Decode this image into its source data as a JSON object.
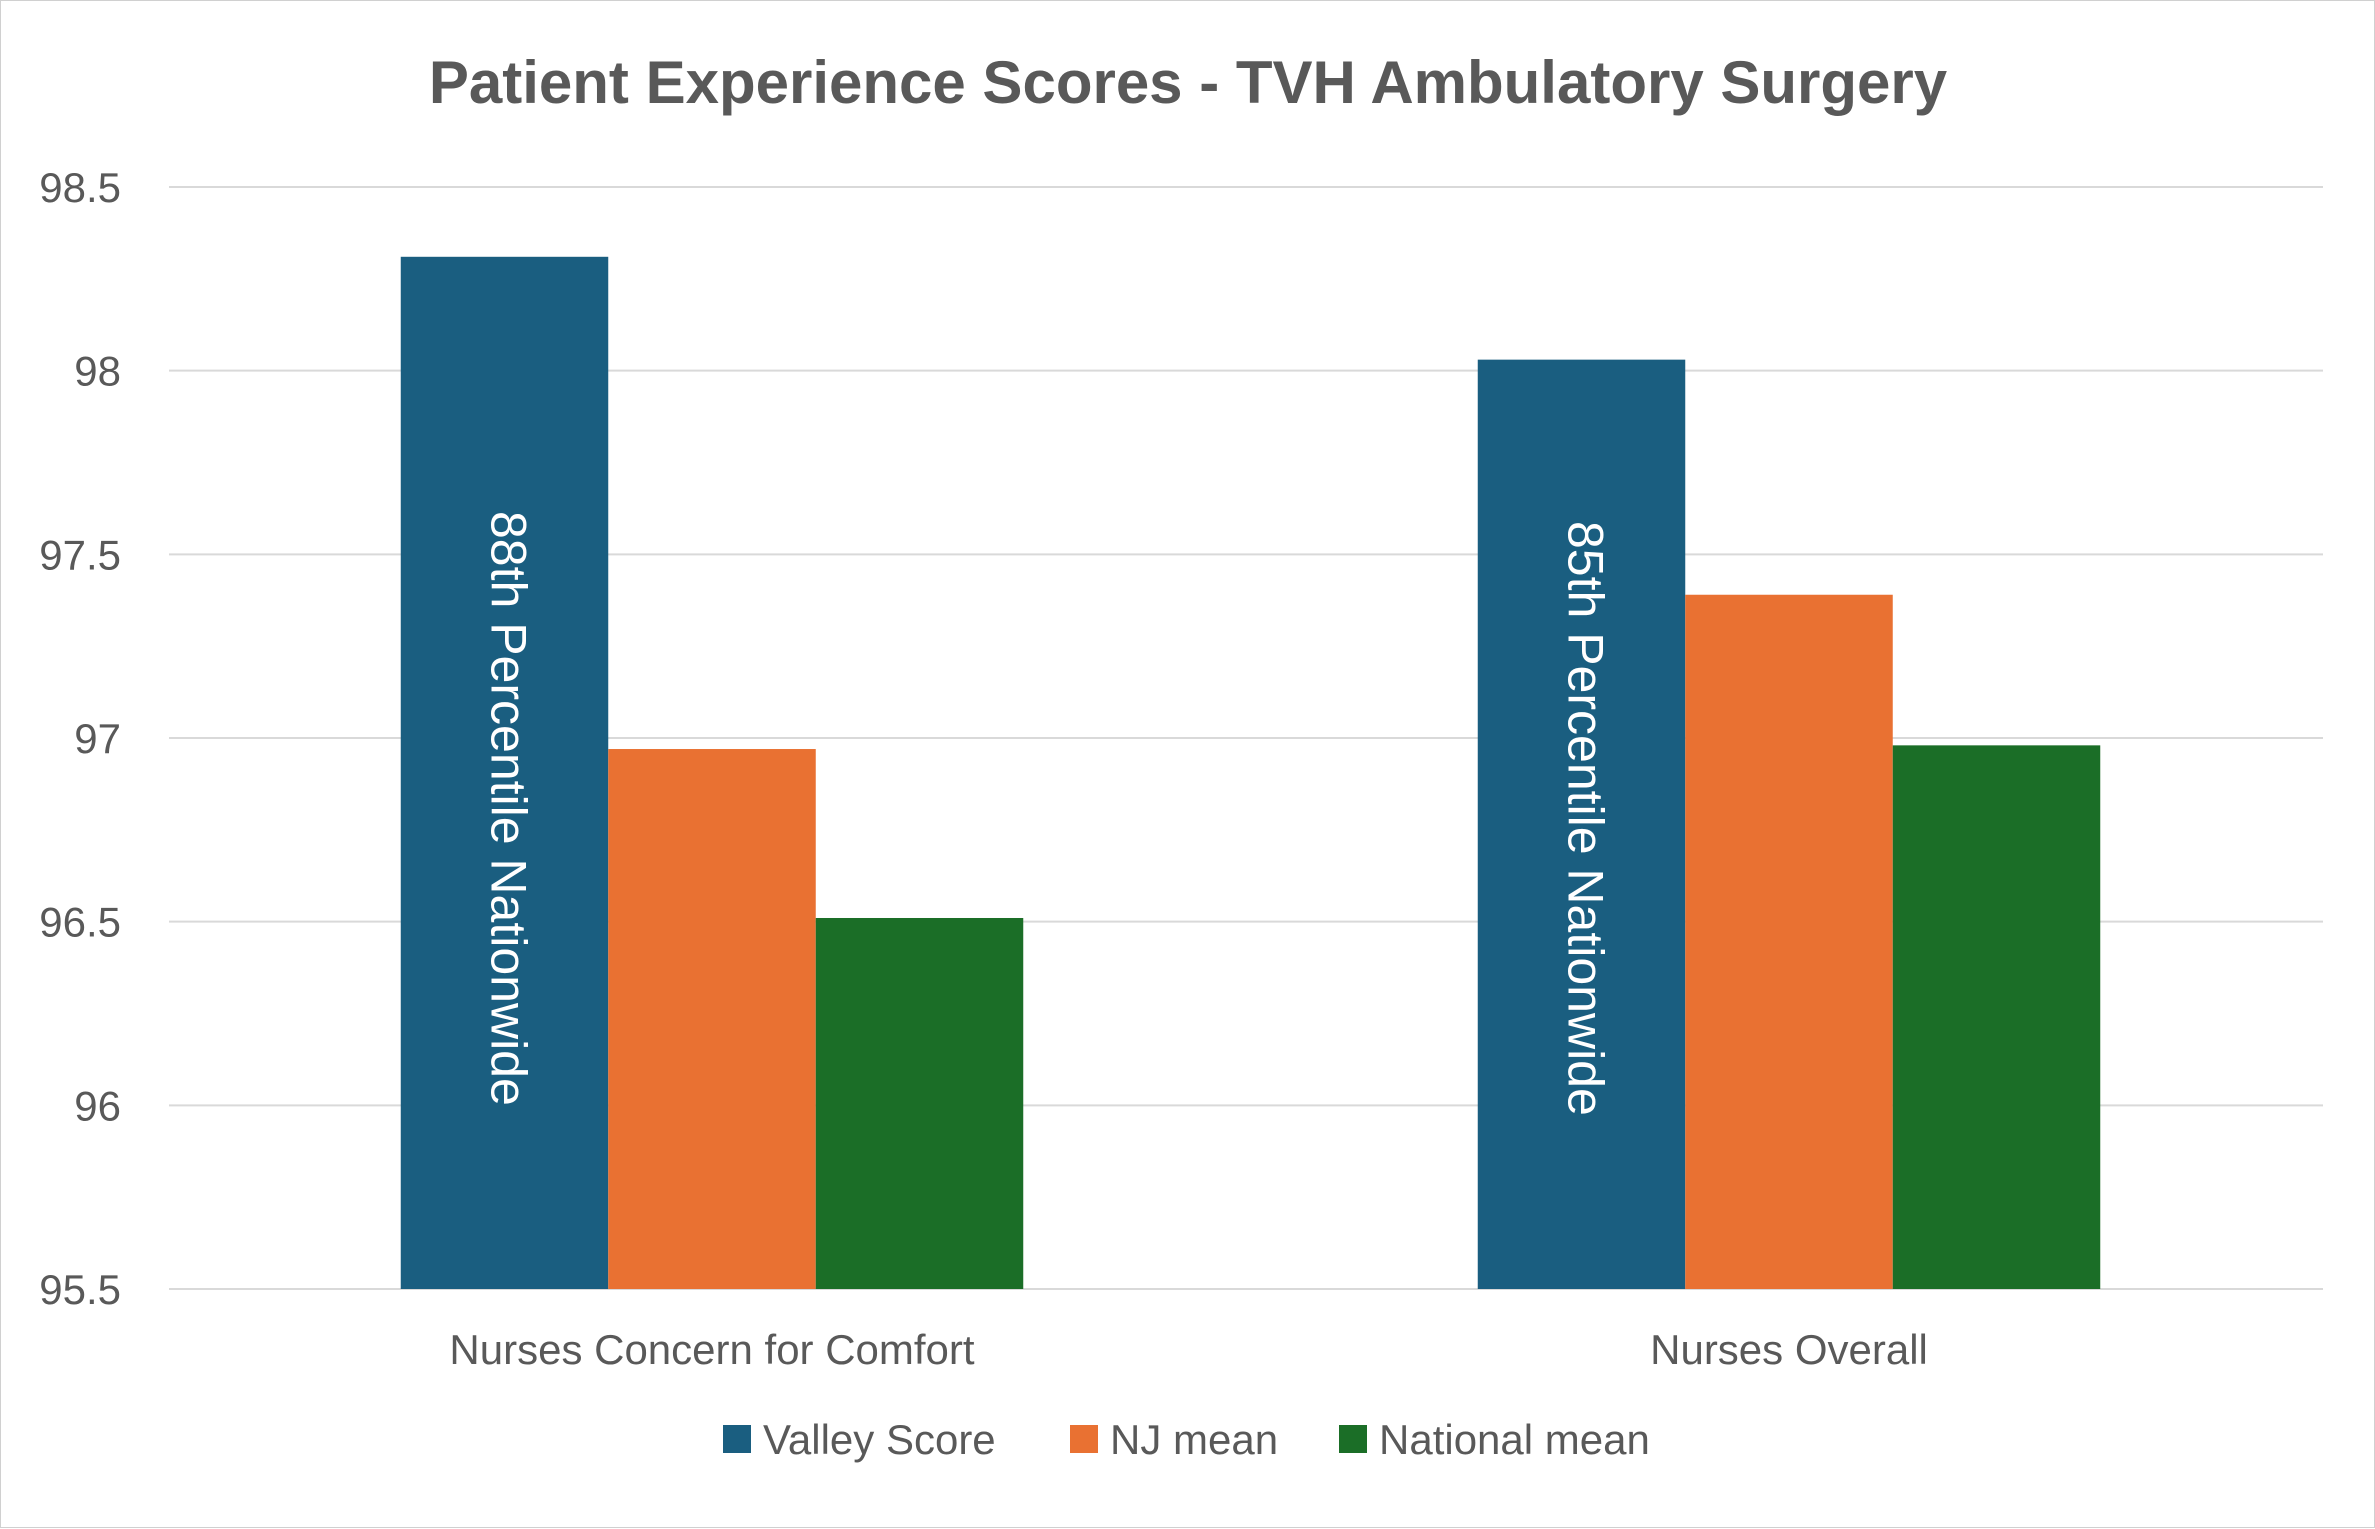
{
  "chart_data": {
    "type": "bar",
    "title": "Patient Experience Scores - TVH Ambulatory Surgery",
    "xlabel": "",
    "ylabel": "",
    "categories": [
      "Nurses Concern for Comfort",
      "Nurses Overall"
    ],
    "series": [
      {
        "name": "Valley Score",
        "color": "#1a5e80",
        "values": [
          98.31,
          98.03
        ]
      },
      {
        "name": "NJ mean",
        "color": "#e97132",
        "values": [
          96.97,
          97.39
        ]
      },
      {
        "name": "National mean",
        "color": "#1b6e27",
        "values": [
          96.51,
          96.98
        ]
      }
    ],
    "ylim": [
      95.5,
      98.5
    ],
    "yticks": [
      "98.5",
      "98",
      "97.5",
      "97",
      "96.5",
      "96",
      "95.5"
    ],
    "ytick_values": [
      98.5,
      98,
      97.5,
      97,
      96.5,
      96,
      95.5
    ],
    "gridlines": true,
    "gridline_color": "#d9d9d9",
    "legend_position": "bottom",
    "annotations": [
      {
        "series": 0,
        "category": 0,
        "text": "88th Percentile Nationwide"
      },
      {
        "series": 0,
        "category": 1,
        "text": "85th Percentile Nationwide"
      }
    ]
  }
}
